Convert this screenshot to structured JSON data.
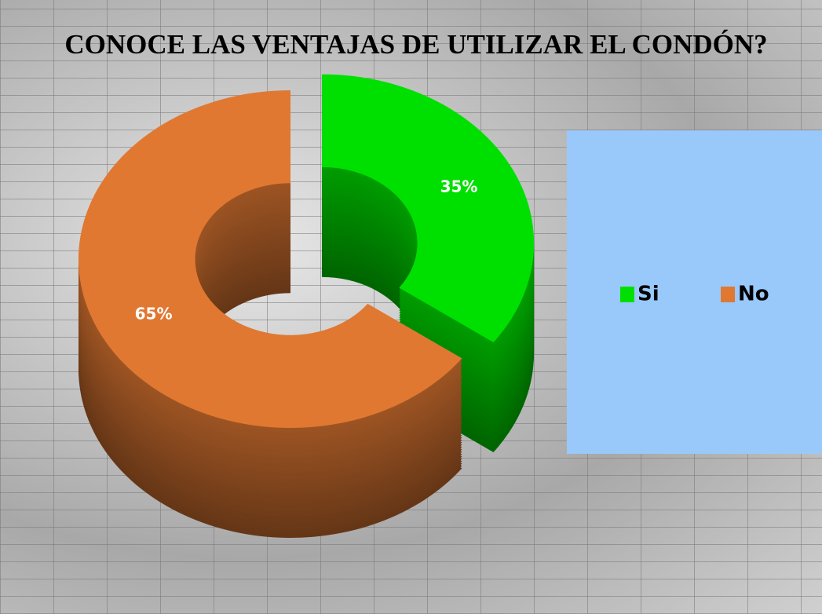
{
  "chart_data": {
    "type": "donut",
    "title": "CONOCE LAS VENTAJAS DE UTILIZAR EL CONDÓN?",
    "categories": [
      "Si",
      "No"
    ],
    "values": [
      35,
      65
    ],
    "value_labels": [
      "35%",
      "65%"
    ],
    "colors": [
      "#00e000",
      "#e07832"
    ],
    "legend": "right"
  }
}
